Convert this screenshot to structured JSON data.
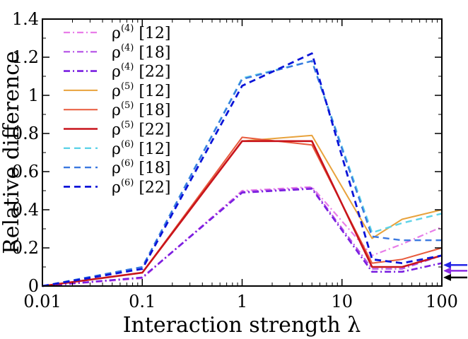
{
  "chart_data": {
    "type": "line",
    "title": "",
    "xlabel": "Interaction strength λ",
    "ylabel": "Relative difference",
    "x_scale": "log",
    "xlim": [
      0.01,
      100
    ],
    "ylim": [
      0,
      1.4
    ],
    "x_ticks": [
      0.01,
      0.1,
      1,
      10,
      100
    ],
    "x_tick_labels": [
      "0.01",
      "0.1",
      "1",
      "10",
      "100"
    ],
    "y_ticks": [
      0,
      0.2,
      0.4,
      0.6,
      0.8,
      1,
      1.2,
      1.4
    ],
    "y_tick_labels": [
      "0",
      "0.2",
      "0.4",
      "0.6",
      "0.8",
      "1",
      "1.2",
      "1.4"
    ],
    "grid": false,
    "legend_position": "upper-left",
    "x": [
      0.01,
      0.1,
      1,
      5,
      20,
      40,
      100
    ],
    "series": [
      {
        "name_base": "ρ",
        "name_sup": "(4)",
        "name_suffix": " [12]",
        "color": "#e87de8",
        "dash": "dashdot",
        "width": 2.2,
        "values": [
          0.0,
          0.04,
          0.5,
          0.52,
          0.16,
          0.22,
          0.31
        ]
      },
      {
        "name_base": "ρ",
        "name_sup": "(4)",
        "name_suffix": " [18]",
        "color": "#b44fe6",
        "dash": "dashdot",
        "width": 2.2,
        "values": [
          0.0,
          0.045,
          0.495,
          0.515,
          0.09,
          0.09,
          0.16
        ]
      },
      {
        "name_base": "ρ",
        "name_sup": "(4)",
        "name_suffix": " [22]",
        "color": "#7a1fe0",
        "dash": "dashdot",
        "width": 2.6,
        "values": [
          0.0,
          0.045,
          0.49,
          0.51,
          0.075,
          0.075,
          0.12
        ]
      },
      {
        "name_base": "ρ",
        "name_sup": "(5)",
        "name_suffix": " [12]",
        "color": "#e8a23c",
        "dash": "solid",
        "width": 2.0,
        "values": [
          0.0,
          0.07,
          0.76,
          0.79,
          0.25,
          0.35,
          0.4
        ]
      },
      {
        "name_base": "ρ",
        "name_sup": "(5)",
        "name_suffix": " [18]",
        "color": "#e85a3c",
        "dash": "solid",
        "width": 2.0,
        "values": [
          0.0,
          0.07,
          0.78,
          0.74,
          0.12,
          0.14,
          0.2
        ]
      },
      {
        "name_base": "ρ",
        "name_sup": "(5)",
        "name_suffix": " [22]",
        "color": "#c8141c",
        "dash": "solid",
        "width": 2.6,
        "values": [
          0.0,
          0.07,
          0.76,
          0.76,
          0.1,
          0.1,
          0.16
        ]
      },
      {
        "name_base": "ρ",
        "name_sup": "(6)",
        "name_suffix": " [12]",
        "color": "#5ed3e8",
        "dash": "dashed",
        "width": 2.4,
        "values": [
          0.0,
          0.1,
          1.09,
          1.18,
          0.28,
          0.33,
          0.38
        ]
      },
      {
        "name_base": "ρ",
        "name_sup": "(6)",
        "name_suffix": " [18]",
        "color": "#3a78e0",
        "dash": "dashed",
        "width": 2.4,
        "values": [
          0.0,
          0.1,
          1.085,
          1.18,
          0.26,
          0.24,
          0.24
        ]
      },
      {
        "name_base": "ρ",
        "name_sup": "(6)",
        "name_suffix": " [22]",
        "color": "#0a14d8",
        "dash": "dashed",
        "width": 2.8,
        "values": [
          0.0,
          0.09,
          1.05,
          1.22,
          0.14,
          0.12,
          0.16
        ]
      }
    ],
    "right_arrows": [
      {
        "y": 0.11,
        "color": "#2424e6"
      },
      {
        "y": 0.08,
        "color": "#8a2be2"
      },
      {
        "y": 0.045,
        "color": "#000000"
      }
    ]
  }
}
